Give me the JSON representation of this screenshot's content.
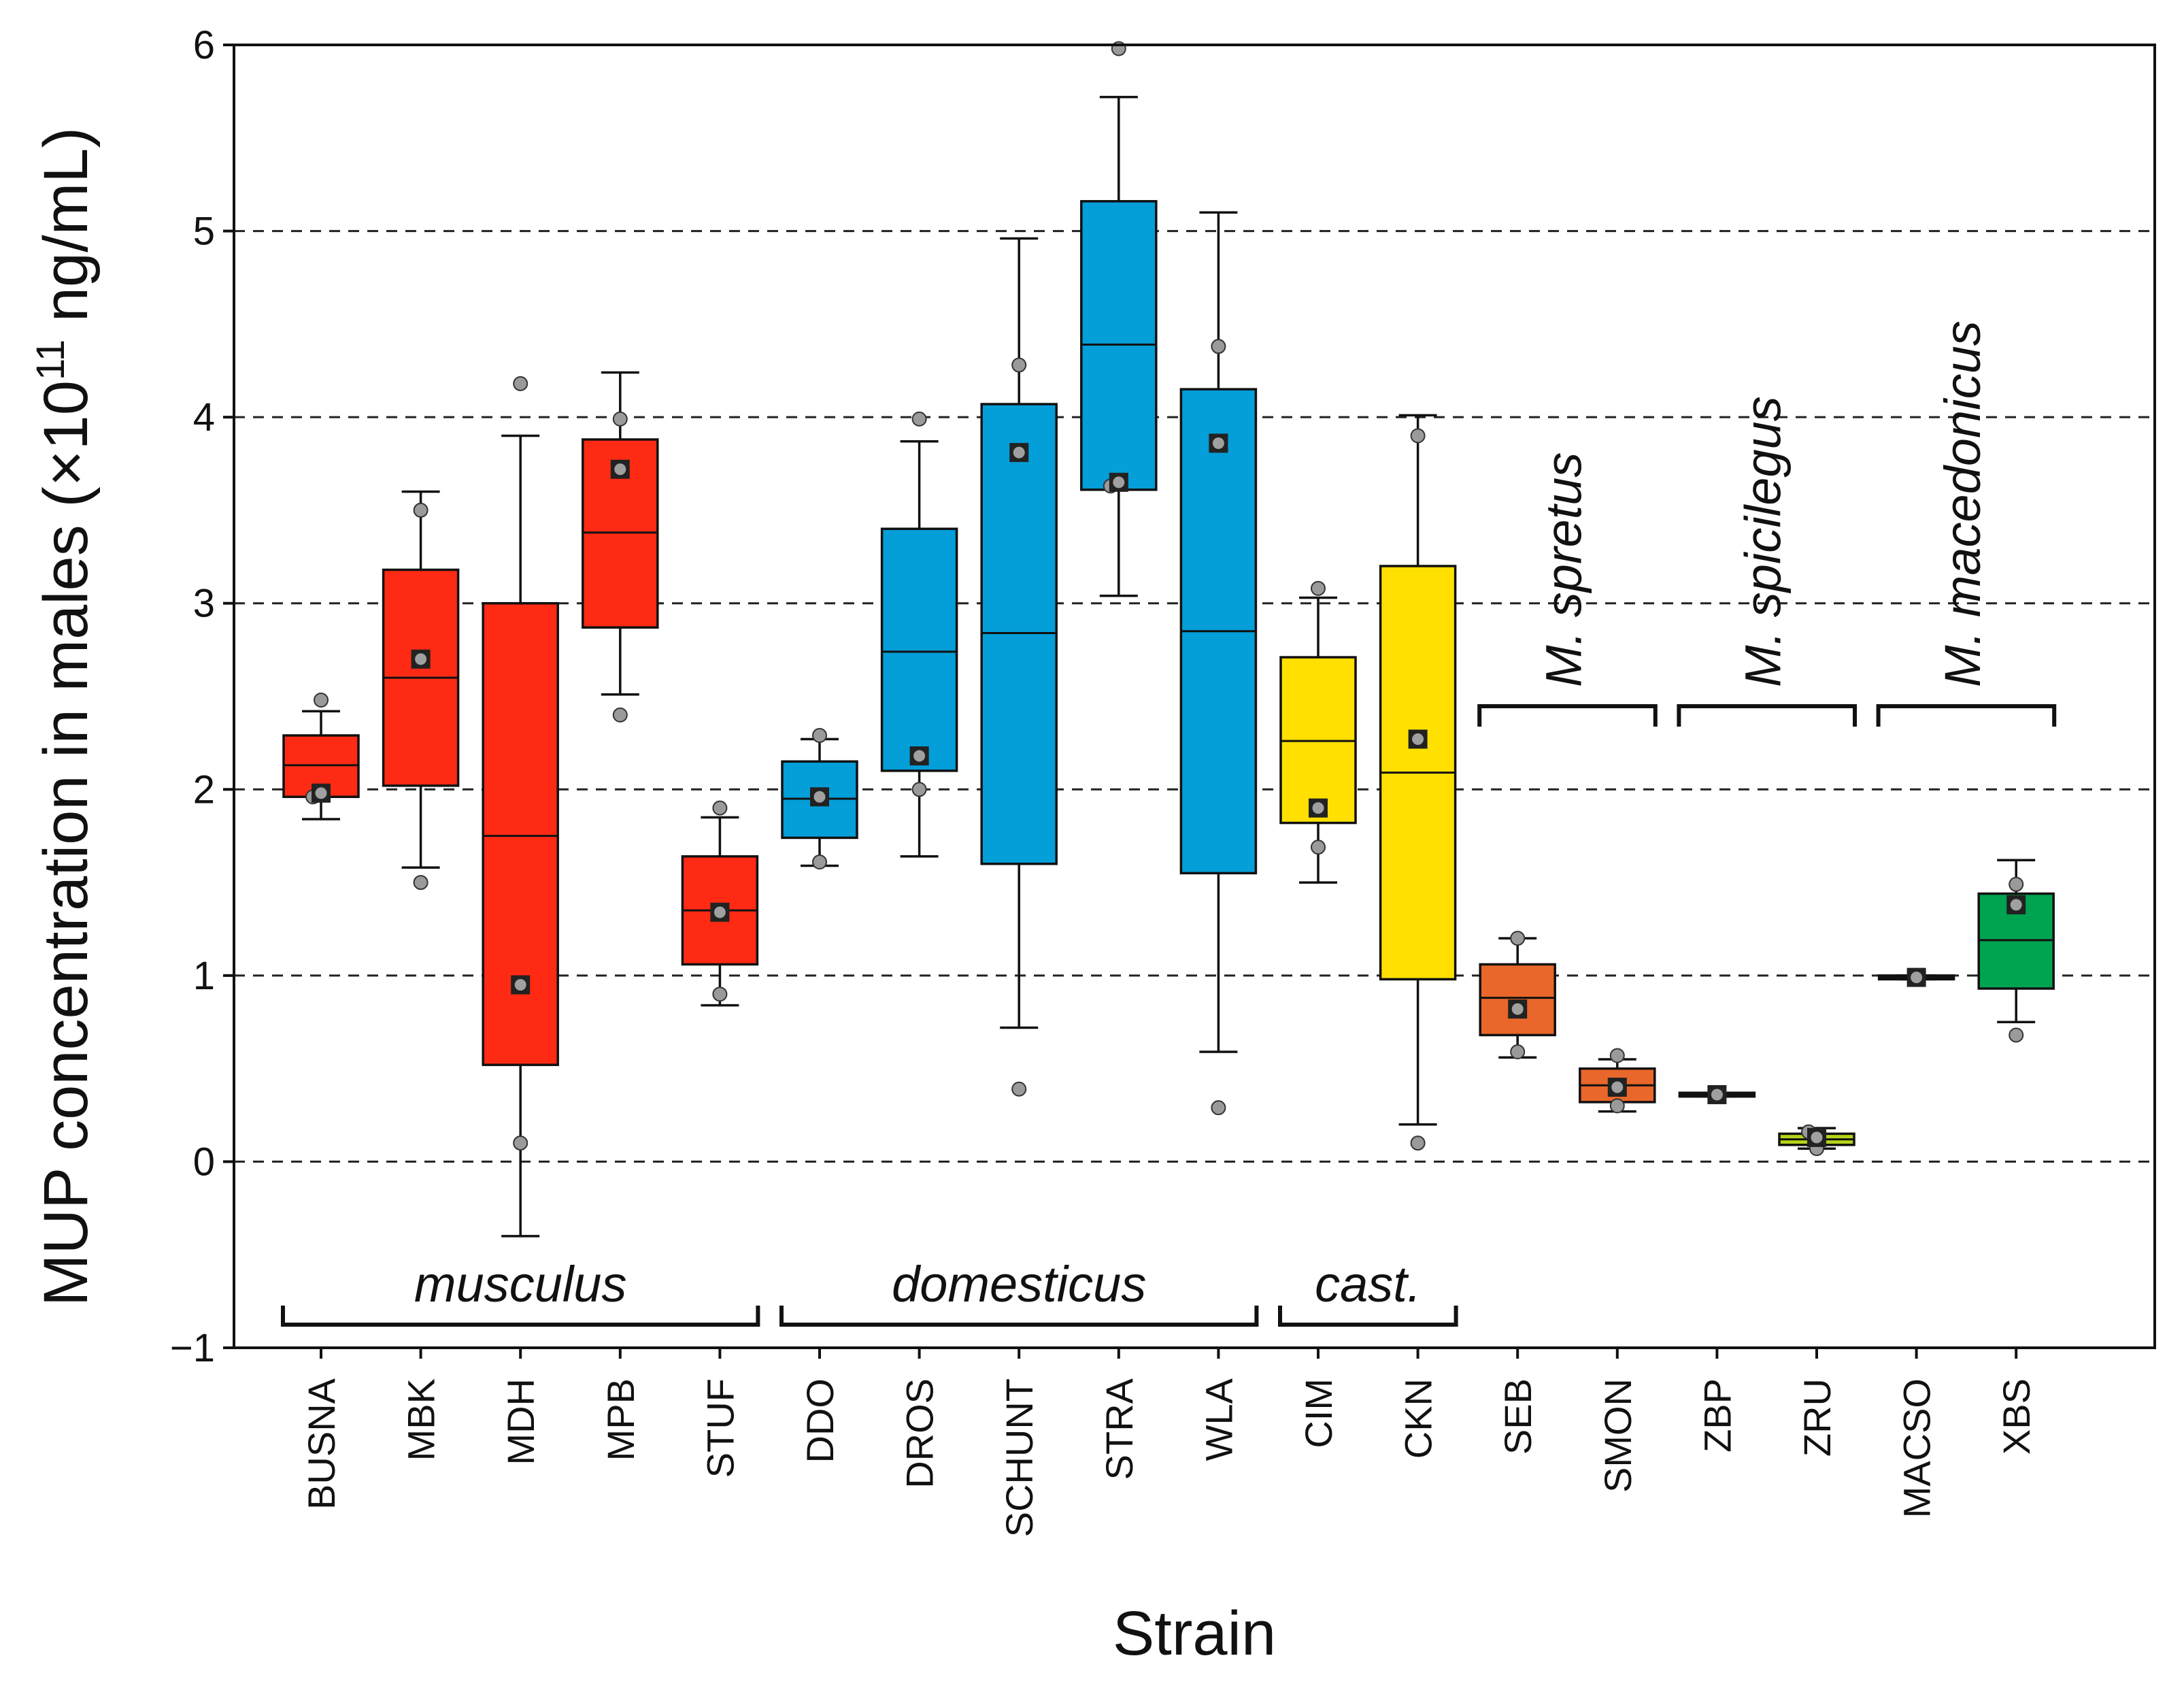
{
  "chart_data": {
    "type": "box",
    "xlabel": "Strain",
    "ylabel_main": "MUP concentration in males (×10",
    "ylabel_sup": "11",
    "ylabel_end": " ng/mL)",
    "ylim": [
      -1,
      6
    ],
    "yticks": [
      -1,
      0,
      1,
      2,
      3,
      4,
      5,
      6
    ],
    "ytick_labels": [
      "−1",
      "0",
      "1",
      "2",
      "3",
      "4",
      "5",
      "6"
    ],
    "grid": "dashed horizontal at 0–5",
    "categories": [
      "BUSNA",
      "MBK",
      "MDH",
      "MPB",
      "STUF",
      "DDO",
      "DROS",
      "SCHUNT",
      "STRA",
      "WLA",
      "CIM",
      "CKN",
      "SEB",
      "SMON",
      "ZBP",
      "ZRU",
      "MACSO",
      "XBS"
    ],
    "boxes": [
      {
        "strain": "BUSNA",
        "color": "#ff2a14",
        "q1": 1.96,
        "median": 2.13,
        "q3": 2.29,
        "whisker_low": 1.84,
        "whisker_high": 2.42,
        "mean": 1.98,
        "points": [
          1.96,
          1.98,
          2.48
        ]
      },
      {
        "strain": "MBK",
        "color": "#ff2a14",
        "q1": 2.02,
        "median": 2.6,
        "q3": 3.18,
        "whisker_low": 1.58,
        "whisker_high": 3.6,
        "mean": 2.7,
        "points": [
          1.5,
          2.7,
          3.5
        ]
      },
      {
        "strain": "MDH",
        "color": "#ff2a14",
        "q1": 0.52,
        "median": 1.75,
        "q3": 3.0,
        "whisker_low": -0.4,
        "whisker_high": 3.9,
        "mean": 0.95,
        "points": [
          0.1,
          0.95,
          4.18
        ]
      },
      {
        "strain": "MPB",
        "color": "#ff2a14",
        "q1": 2.87,
        "median": 3.38,
        "q3": 3.88,
        "whisker_low": 2.51,
        "whisker_high": 4.24,
        "mean": 3.72,
        "points": [
          2.4,
          3.72,
          3.99
        ]
      },
      {
        "strain": "STUF",
        "color": "#ff2a14",
        "q1": 1.06,
        "median": 1.35,
        "q3": 1.64,
        "whisker_low": 0.84,
        "whisker_high": 1.85,
        "mean": 1.34,
        "points": [
          0.9,
          1.34,
          1.9
        ]
      },
      {
        "strain": "DDO",
        "color": "#049ed8",
        "q1": 1.74,
        "median": 1.95,
        "q3": 2.15,
        "whisker_low": 1.59,
        "whisker_high": 2.27,
        "mean": 1.96,
        "points": [
          1.61,
          1.96,
          2.29
        ]
      },
      {
        "strain": "DROS",
        "color": "#049ed8",
        "q1": 2.1,
        "median": 2.74,
        "q3": 3.4,
        "whisker_low": 1.64,
        "whisker_high": 3.87,
        "mean": 2.18,
        "points": [
          2.0,
          2.18,
          3.99
        ]
      },
      {
        "strain": "SCHUNT",
        "color": "#049ed8",
        "q1": 1.6,
        "median": 2.84,
        "q3": 4.07,
        "whisker_low": 0.72,
        "whisker_high": 4.96,
        "mean": 3.81,
        "points": [
          0.39,
          3.81,
          4.28
        ]
      },
      {
        "strain": "STRA",
        "color": "#049ed8",
        "q1": 3.61,
        "median": 4.39,
        "q3": 5.16,
        "whisker_low": 3.04,
        "whisker_high": 5.72,
        "mean": 3.65,
        "points": [
          3.63,
          3.65,
          5.98
        ]
      },
      {
        "strain": "WLA",
        "color": "#049ed8",
        "q1": 1.55,
        "median": 2.85,
        "q3": 4.15,
        "whisker_low": 0.59,
        "whisker_high": 5.1,
        "mean": 3.86,
        "points": [
          0.29,
          3.86,
          4.38
        ]
      },
      {
        "strain": "CIM",
        "color": "#ffe000",
        "q1": 1.82,
        "median": 2.26,
        "q3": 2.71,
        "whisker_low": 1.5,
        "whisker_high": 3.03,
        "mean": 1.9,
        "points": [
          1.69,
          1.9,
          3.08
        ]
      },
      {
        "strain": "CKN",
        "color": "#ffe000",
        "q1": 0.98,
        "median": 2.09,
        "q3": 3.2,
        "whisker_low": 0.2,
        "whisker_high": 4.01,
        "mean": 2.27,
        "points": [
          0.1,
          2.27,
          3.9
        ]
      },
      {
        "strain": "SEB",
        "color": "#e9672a",
        "q1": 0.68,
        "median": 0.88,
        "q3": 1.06,
        "whisker_low": 0.56,
        "whisker_high": 1.2,
        "mean": 0.82,
        "points": [
          0.59,
          0.82,
          1.2
        ]
      },
      {
        "strain": "SMON",
        "color": "#e9672a",
        "q1": 0.32,
        "median": 0.41,
        "q3": 0.5,
        "whisker_low": 0.27,
        "whisker_high": 0.55,
        "mean": 0.4,
        "points": [
          0.3,
          0.4,
          0.57
        ]
      },
      {
        "strain": "ZBP",
        "color": "#e9672a",
        "q1": 0.35,
        "median": 0.36,
        "q3": 0.37,
        "whisker_low": 0.35,
        "whisker_high": 0.37,
        "mean": 0.36,
        "points": [
          0.36
        ]
      },
      {
        "strain": "ZRU",
        "color": "#b6d319",
        "q1": 0.09,
        "median": 0.12,
        "q3": 0.15,
        "whisker_low": 0.07,
        "whisker_high": 0.18,
        "mean": 0.13,
        "points": [
          0.07,
          0.13,
          0.16
        ]
      },
      {
        "strain": "MACSO",
        "color": "#5f8f3b",
        "q1": 0.98,
        "median": 0.99,
        "q3": 1.0,
        "whisker_low": 0.98,
        "whisker_high": 1.0,
        "mean": 0.99,
        "points": [
          0.99
        ]
      },
      {
        "strain": "XBS",
        "color": "#00a34f",
        "q1": 0.93,
        "median": 1.19,
        "q3": 1.44,
        "whisker_low": 0.75,
        "whisker_high": 1.62,
        "mean": 1.38,
        "points": [
          0.68,
          1.38,
          1.49
        ]
      }
    ],
    "bottom_groups": [
      {
        "label": "musculus",
        "from": "BUSNA",
        "to": "STUF"
      },
      {
        "label": "domesticus",
        "from": "DDO",
        "to": "WLA"
      },
      {
        "label": "cast.",
        "from": "CIM",
        "to": "CKN"
      }
    ],
    "top_groups": [
      {
        "label": "M. spretus",
        "from": "SEB",
        "to": "SMON"
      },
      {
        "label": "M. spicilegus",
        "from": "ZBP",
        "to": "ZRU"
      },
      {
        "label": "M. macedonicus",
        "from": "MACSO",
        "to": "XBS"
      }
    ]
  }
}
